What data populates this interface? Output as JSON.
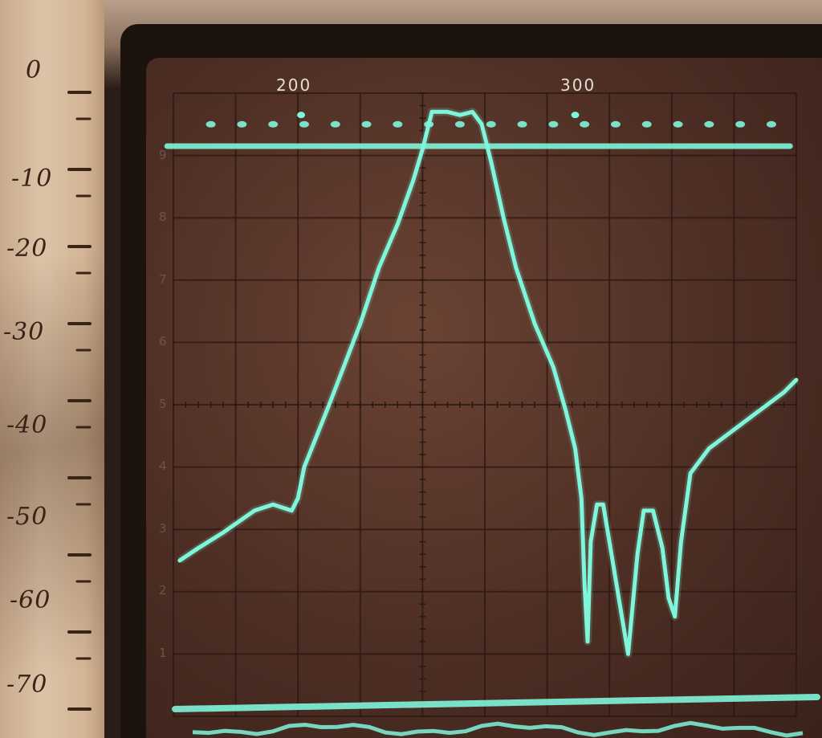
{
  "scene": {
    "description_free": true,
    "trace_color": "#7ff5da",
    "screen_color": "#5a3528",
    "paper_color": "#d6bb9f"
  },
  "frequency_labels": [
    "200",
    "300"
  ],
  "db_scale": {
    "labels": [
      "0",
      "-10",
      "-20",
      "-30",
      "-40",
      "-50",
      "-60",
      "-70"
    ]
  },
  "division_labels": [
    "9",
    "8",
    "7",
    "6",
    "5",
    "4",
    "3",
    "2",
    "1"
  ],
  "chart_data": {
    "type": "line",
    "xlim": [
      0,
      10
    ],
    "ylim": [
      0,
      10
    ],
    "series": [
      {
        "values_xy": [
          [
            0.1,
            2.5
          ],
          [
            0.4,
            2.7
          ],
          [
            0.8,
            2.95
          ],
          [
            1.3,
            3.3
          ],
          [
            1.6,
            3.4
          ],
          [
            1.9,
            3.3
          ],
          [
            2.0,
            3.5
          ],
          [
            2.1,
            4.0
          ],
          [
            2.5,
            5.0
          ],
          [
            3.0,
            6.3
          ],
          [
            3.3,
            7.2
          ],
          [
            3.6,
            7.9
          ],
          [
            3.85,
            8.6
          ],
          [
            4.0,
            9.1
          ],
          [
            4.15,
            9.7
          ],
          [
            4.4,
            9.7
          ],
          [
            4.6,
            9.65
          ],
          [
            4.8,
            9.7
          ],
          [
            4.95,
            9.5
          ],
          [
            5.1,
            8.9
          ],
          [
            5.3,
            8.0
          ],
          [
            5.5,
            7.2
          ],
          [
            5.8,
            6.3
          ],
          [
            6.1,
            5.6
          ],
          [
            6.3,
            4.9
          ],
          [
            6.45,
            4.3
          ],
          [
            6.55,
            3.5
          ],
          [
            6.6,
            2.1
          ],
          [
            6.65,
            1.2
          ],
          [
            6.7,
            2.8
          ],
          [
            6.8,
            3.4
          ],
          [
            6.9,
            3.4
          ],
          [
            7.0,
            2.8
          ],
          [
            7.15,
            1.9
          ],
          [
            7.3,
            1.0
          ],
          [
            7.45,
            2.6
          ],
          [
            7.55,
            3.3
          ],
          [
            7.7,
            3.3
          ],
          [
            7.85,
            2.7
          ],
          [
            7.95,
            1.9
          ],
          [
            8.05,
            1.6
          ],
          [
            8.15,
            2.8
          ],
          [
            8.3,
            3.9
          ],
          [
            8.6,
            4.3
          ],
          [
            9.0,
            4.6
          ],
          [
            9.4,
            4.9
          ],
          [
            9.8,
            5.2
          ],
          [
            10.0,
            5.4
          ]
        ]
      }
    ],
    "reference_line_level": 9.15,
    "marker_row_level": 9.5
  }
}
